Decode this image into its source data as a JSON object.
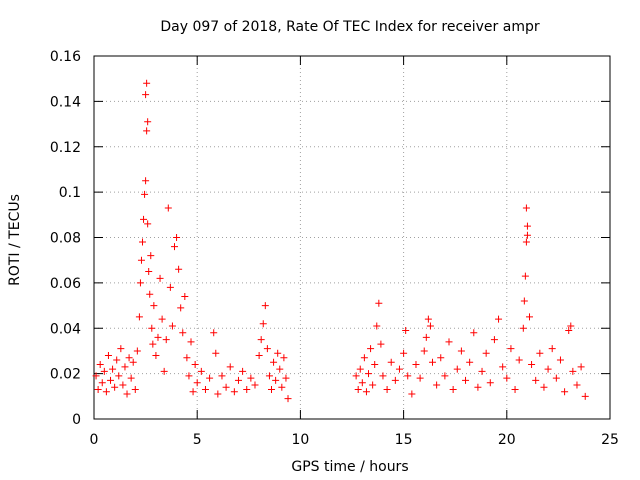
{
  "chart_data": {
    "type": "scatter",
    "title": "Day 097 of 2018, Rate Of TEC Index for receiver ampr",
    "xlabel": "GPS time / hours",
    "ylabel": "ROTI / TECUs",
    "xlim": [
      0,
      25
    ],
    "ylim": [
      0,
      0.16
    ],
    "xticks": [
      0,
      5,
      10,
      15,
      20,
      25
    ],
    "xtick_labels": [
      "0",
      "5",
      "10",
      "15",
      "20",
      "25"
    ],
    "yticks": [
      0,
      0.02,
      0.04,
      0.06,
      0.08,
      0.1,
      0.12,
      0.14,
      0.16
    ],
    "ytick_labels": [
      "0",
      "0.02",
      "0.04",
      "0.06",
      "0.08",
      "0.1",
      "0.12",
      "0.14",
      "0.16"
    ],
    "grid": true,
    "marker": "+",
    "color": "#ff0000",
    "series": [
      {
        "name": "ROTI",
        "points": [
          [
            0.1,
            0.019
          ],
          [
            0.2,
            0.013
          ],
          [
            0.3,
            0.024
          ],
          [
            0.4,
            0.016
          ],
          [
            0.5,
            0.021
          ],
          [
            0.6,
            0.012
          ],
          [
            0.7,
            0.028
          ],
          [
            0.8,
            0.017
          ],
          [
            0.9,
            0.022
          ],
          [
            1.0,
            0.014
          ],
          [
            1.1,
            0.026
          ],
          [
            1.2,
            0.019
          ],
          [
            1.3,
            0.031
          ],
          [
            1.4,
            0.015
          ],
          [
            1.5,
            0.023
          ],
          [
            1.6,
            0.011
          ],
          [
            1.7,
            0.027
          ],
          [
            1.8,
            0.018
          ],
          [
            1.9,
            0.025
          ],
          [
            2.0,
            0.013
          ],
          [
            2.1,
            0.03
          ],
          [
            2.2,
            0.045
          ],
          [
            2.25,
            0.06
          ],
          [
            2.3,
            0.07
          ],
          [
            2.35,
            0.078
          ],
          [
            2.4,
            0.088
          ],
          [
            2.45,
            0.099
          ],
          [
            2.5,
            0.105
          ],
          [
            2.55,
            0.127
          ],
          [
            2.6,
            0.131
          ],
          [
            2.5,
            0.143
          ],
          [
            2.55,
            0.148
          ],
          [
            2.6,
            0.086
          ],
          [
            2.65,
            0.065
          ],
          [
            2.7,
            0.055
          ],
          [
            2.75,
            0.072
          ],
          [
            2.8,
            0.04
          ],
          [
            2.85,
            0.033
          ],
          [
            2.9,
            0.05
          ],
          [
            3.0,
            0.028
          ],
          [
            3.1,
            0.036
          ],
          [
            3.2,
            0.062
          ],
          [
            3.3,
            0.044
          ],
          [
            3.4,
            0.021
          ],
          [
            3.5,
            0.035
          ],
          [
            3.6,
            0.093
          ],
          [
            3.7,
            0.058
          ],
          [
            3.8,
            0.041
          ],
          [
            3.9,
            0.076
          ],
          [
            4.0,
            0.08
          ],
          [
            4.1,
            0.066
          ],
          [
            4.2,
            0.049
          ],
          [
            4.3,
            0.038
          ],
          [
            4.4,
            0.054
          ],
          [
            4.5,
            0.027
          ],
          [
            4.6,
            0.019
          ],
          [
            4.7,
            0.034
          ],
          [
            4.8,
            0.012
          ],
          [
            4.9,
            0.024
          ],
          [
            5.0,
            0.016
          ],
          [
            5.2,
            0.021
          ],
          [
            5.4,
            0.013
          ],
          [
            5.6,
            0.018
          ],
          [
            5.8,
            0.038
          ],
          [
            5.9,
            0.029
          ],
          [
            6.0,
            0.011
          ],
          [
            6.2,
            0.019
          ],
          [
            6.4,
            0.014
          ],
          [
            6.6,
            0.023
          ],
          [
            6.8,
            0.012
          ],
          [
            7.0,
            0.017
          ],
          [
            7.2,
            0.021
          ],
          [
            7.4,
            0.013
          ],
          [
            7.6,
            0.018
          ],
          [
            7.8,
            0.015
          ],
          [
            8.0,
            0.028
          ],
          [
            8.1,
            0.035
          ],
          [
            8.2,
            0.042
          ],
          [
            8.3,
            0.05
          ],
          [
            8.4,
            0.031
          ],
          [
            8.5,
            0.019
          ],
          [
            8.6,
            0.013
          ],
          [
            8.7,
            0.025
          ],
          [
            8.8,
            0.017
          ],
          [
            8.9,
            0.029
          ],
          [
            9.0,
            0.022
          ],
          [
            9.1,
            0.014
          ],
          [
            9.2,
            0.027
          ],
          [
            9.3,
            0.018
          ],
          [
            9.4,
            0.009
          ],
          [
            12.7,
            0.019
          ],
          [
            12.8,
            0.013
          ],
          [
            12.9,
            0.022
          ],
          [
            13.0,
            0.016
          ],
          [
            13.1,
            0.027
          ],
          [
            13.2,
            0.012
          ],
          [
            13.3,
            0.02
          ],
          [
            13.4,
            0.031
          ],
          [
            13.5,
            0.015
          ],
          [
            13.6,
            0.024
          ],
          [
            13.7,
            0.041
          ],
          [
            13.8,
            0.051
          ],
          [
            13.9,
            0.033
          ],
          [
            14.0,
            0.019
          ],
          [
            14.2,
            0.013
          ],
          [
            14.4,
            0.025
          ],
          [
            14.6,
            0.017
          ],
          [
            14.8,
            0.022
          ],
          [
            15.0,
            0.029
          ],
          [
            15.1,
            0.039
          ],
          [
            15.2,
            0.019
          ],
          [
            15.4,
            0.011
          ],
          [
            15.6,
            0.024
          ],
          [
            15.8,
            0.018
          ],
          [
            16.0,
            0.03
          ],
          [
            16.1,
            0.036
          ],
          [
            16.2,
            0.044
          ],
          [
            16.3,
            0.041
          ],
          [
            16.4,
            0.025
          ],
          [
            16.6,
            0.015
          ],
          [
            16.8,
            0.027
          ],
          [
            17.0,
            0.019
          ],
          [
            17.2,
            0.034
          ],
          [
            17.4,
            0.013
          ],
          [
            17.6,
            0.022
          ],
          [
            17.8,
            0.03
          ],
          [
            18.0,
            0.017
          ],
          [
            18.2,
            0.025
          ],
          [
            18.4,
            0.038
          ],
          [
            18.6,
            0.014
          ],
          [
            18.8,
            0.021
          ],
          [
            19.0,
            0.029
          ],
          [
            19.2,
            0.016
          ],
          [
            19.4,
            0.035
          ],
          [
            19.6,
            0.044
          ],
          [
            19.8,
            0.023
          ],
          [
            20.0,
            0.018
          ],
          [
            20.2,
            0.031
          ],
          [
            20.4,
            0.013
          ],
          [
            20.6,
            0.026
          ],
          [
            20.8,
            0.04
          ],
          [
            20.85,
            0.052
          ],
          [
            20.9,
            0.063
          ],
          [
            20.95,
            0.078
          ],
          [
            21.0,
            0.085
          ],
          [
            20.95,
            0.093
          ],
          [
            21.0,
            0.081
          ],
          [
            21.1,
            0.045
          ],
          [
            21.2,
            0.024
          ],
          [
            21.4,
            0.017
          ],
          [
            21.6,
            0.029
          ],
          [
            21.8,
            0.014
          ],
          [
            22.0,
            0.022
          ],
          [
            22.2,
            0.031
          ],
          [
            22.4,
            0.018
          ],
          [
            22.6,
            0.026
          ],
          [
            22.8,
            0.012
          ],
          [
            23.0,
            0.039
          ],
          [
            23.1,
            0.041
          ],
          [
            23.2,
            0.021
          ],
          [
            23.4,
            0.015
          ],
          [
            23.6,
            0.023
          ],
          [
            23.8,
            0.01
          ]
        ]
      }
    ]
  }
}
